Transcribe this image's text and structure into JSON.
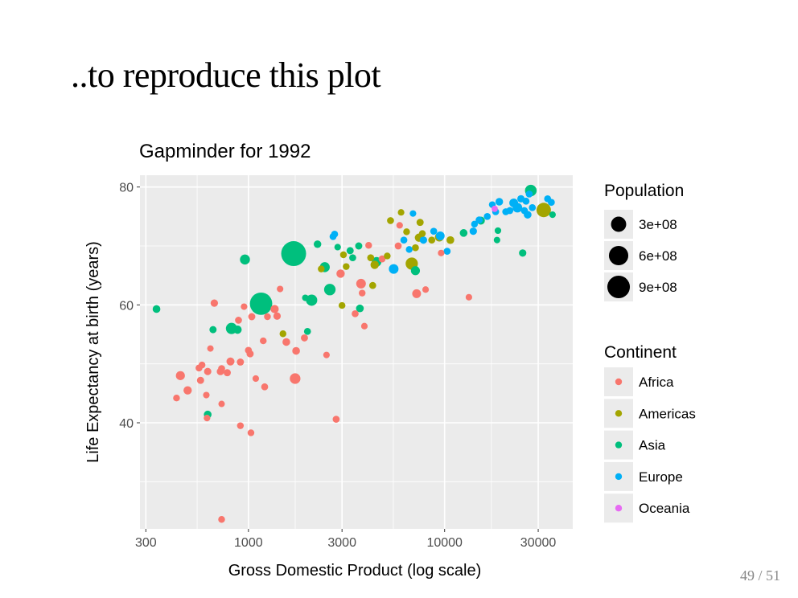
{
  "slide": {
    "title": "..to reproduce this plot",
    "page_number": "49 / 51"
  },
  "colors": {
    "Africa": "#F8766D",
    "Americas": "#A3A500",
    "Asia": "#00BF7D",
    "Europe": "#00B0F6",
    "Oceania": "#E76BF3",
    "panel": "#EBEBEB",
    "grid": "#FFFFFF"
  },
  "chart_data": {
    "type": "scatter",
    "title": "Gapminder for 1992",
    "xlabel": "Gross Domestic Product (log scale)",
    "ylabel": "Life Expectancy at birth (years)",
    "x_scale": "log",
    "xlim": [
      280,
      45000
    ],
    "ylim": [
      22,
      82
    ],
    "x_ticks": [
      300,
      1000,
      3000,
      10000,
      30000
    ],
    "x_tick_labels": [
      "300",
      "1000",
      "3000",
      "10000",
      "30000"
    ],
    "y_ticks": [
      40,
      60,
      80
    ],
    "y_tick_labels": [
      "40",
      "60",
      "80"
    ],
    "grid": true,
    "legend_position": "right",
    "size_legend": {
      "title": "Population",
      "entries": [
        {
          "label": "3e+08",
          "value": 300000000
        },
        {
          "label": "6e+08",
          "value": 600000000
        },
        {
          "label": "9e+08",
          "value": 900000000
        }
      ]
    },
    "color_legend": {
      "title": "Continent",
      "entries": [
        "Africa",
        "Americas",
        "Asia",
        "Europe",
        "Oceania"
      ]
    },
    "points": [
      {
        "gdp": 340,
        "life": 59.3,
        "pop": 20000000,
        "continent": "Asia"
      },
      {
        "gdp": 430,
        "life": 44.2,
        "pop": 8000000,
        "continent": "Africa"
      },
      {
        "gdp": 450,
        "life": 48.0,
        "pop": 45000000,
        "continent": "Africa"
      },
      {
        "gdp": 490,
        "life": 45.5,
        "pop": 30000000,
        "continent": "Africa"
      },
      {
        "gdp": 560,
        "life": 49.3,
        "pop": 10000000,
        "continent": "Africa"
      },
      {
        "gdp": 570,
        "life": 47.2,
        "pop": 12000000,
        "continent": "Africa"
      },
      {
        "gdp": 580,
        "life": 49.8,
        "pop": 8000000,
        "continent": "Africa"
      },
      {
        "gdp": 610,
        "life": 44.7,
        "pop": 6000000,
        "continent": "Africa"
      },
      {
        "gdp": 620,
        "life": 48.7,
        "pop": 14000000,
        "continent": "Africa"
      },
      {
        "gdp": 640,
        "life": 52.6,
        "pop": 5000000,
        "continent": "Africa"
      },
      {
        "gdp": 620,
        "life": 41.4,
        "pop": 20000000,
        "continent": "Asia"
      },
      {
        "gdp": 615,
        "life": 40.8,
        "pop": 6000000,
        "continent": "Africa"
      },
      {
        "gdp": 660,
        "life": 55.8,
        "pop": 12000000,
        "continent": "Asia"
      },
      {
        "gdp": 670,
        "life": 60.3,
        "pop": 15000000,
        "continent": "Africa"
      },
      {
        "gdp": 720,
        "life": 48.7,
        "pop": 15000000,
        "continent": "Africa"
      },
      {
        "gdp": 730,
        "life": 49.2,
        "pop": 10000000,
        "continent": "Africa"
      },
      {
        "gdp": 730,
        "life": 43.2,
        "pop": 5000000,
        "continent": "Africa"
      },
      {
        "gdp": 730,
        "life": 23.6,
        "pop": 8000000,
        "continent": "Africa"
      },
      {
        "gdp": 780,
        "life": 48.5,
        "pop": 12000000,
        "continent": "Africa"
      },
      {
        "gdp": 810,
        "life": 50.4,
        "pop": 25000000,
        "continent": "Africa"
      },
      {
        "gdp": 820,
        "life": 56.0,
        "pop": 110000000,
        "continent": "Asia"
      },
      {
        "gdp": 880,
        "life": 55.8,
        "pop": 30000000,
        "continent": "Asia"
      },
      {
        "gdp": 890,
        "life": 57.4,
        "pop": 10000000,
        "continent": "Africa"
      },
      {
        "gdp": 910,
        "life": 50.3,
        "pop": 12000000,
        "continent": "Africa"
      },
      {
        "gdp": 910,
        "life": 39.5,
        "pop": 8000000,
        "continent": "Africa"
      },
      {
        "gdp": 950,
        "life": 59.7,
        "pop": 6000000,
        "continent": "Africa"
      },
      {
        "gdp": 960,
        "life": 67.7,
        "pop": 70000000,
        "continent": "Asia"
      },
      {
        "gdp": 1000,
        "life": 52.3,
        "pop": 10000000,
        "continent": "Africa"
      },
      {
        "gdp": 1020,
        "life": 51.7,
        "pop": 12000000,
        "continent": "Africa"
      },
      {
        "gdp": 1030,
        "life": 38.3,
        "pop": 8000000,
        "continent": "Africa"
      },
      {
        "gdp": 1040,
        "life": 58.0,
        "pop": 12000000,
        "continent": "Africa"
      },
      {
        "gdp": 1090,
        "life": 47.5,
        "pop": 6000000,
        "continent": "Africa"
      },
      {
        "gdp": 1160,
        "life": 60.2,
        "pop": 880000000,
        "continent": "Asia"
      },
      {
        "gdp": 1190,
        "life": 53.9,
        "pop": 8000000,
        "continent": "Africa"
      },
      {
        "gdp": 1210,
        "life": 46.1,
        "pop": 10000000,
        "continent": "Africa"
      },
      {
        "gdp": 1250,
        "life": 58.0,
        "pop": 8000000,
        "continent": "Africa"
      },
      {
        "gdp": 1360,
        "life": 59.3,
        "pop": 28000000,
        "continent": "Africa"
      },
      {
        "gdp": 1400,
        "life": 58.1,
        "pop": 15000000,
        "continent": "Africa"
      },
      {
        "gdp": 1450,
        "life": 62.7,
        "pop": 6000000,
        "continent": "Africa"
      },
      {
        "gdp": 1500,
        "life": 55.1,
        "pop": 8000000,
        "continent": "Americas"
      },
      {
        "gdp": 1560,
        "life": 53.7,
        "pop": 20000000,
        "continent": "Africa"
      },
      {
        "gdp": 1700,
        "life": 68.7,
        "pop": 1160000000,
        "continent": "Asia"
      },
      {
        "gdp": 1730,
        "life": 47.5,
        "pop": 90000000,
        "continent": "Africa"
      },
      {
        "gdp": 1750,
        "life": 52.2,
        "pop": 20000000,
        "continent": "Africa"
      },
      {
        "gdp": 1930,
        "life": 54.4,
        "pop": 12000000,
        "continent": "Africa"
      },
      {
        "gdp": 1950,
        "life": 61.2,
        "pop": 6000000,
        "continent": "Asia"
      },
      {
        "gdp": 2000,
        "life": 55.5,
        "pop": 10000000,
        "continent": "Asia"
      },
      {
        "gdp": 2100,
        "life": 60.8,
        "pop": 110000000,
        "continent": "Asia"
      },
      {
        "gdp": 2250,
        "life": 70.3,
        "pop": 18000000,
        "continent": "Asia"
      },
      {
        "gdp": 2350,
        "life": 66.1,
        "pop": 8000000,
        "continent": "Americas"
      },
      {
        "gdp": 2450,
        "life": 66.4,
        "pop": 70000000,
        "continent": "Asia"
      },
      {
        "gdp": 2500,
        "life": 51.5,
        "pop": 6000000,
        "continent": "Africa"
      },
      {
        "gdp": 2600,
        "life": 62.6,
        "pop": 120000000,
        "continent": "Asia"
      },
      {
        "gdp": 2700,
        "life": 71.6,
        "pop": 10000000,
        "continent": "Europe"
      },
      {
        "gdp": 2750,
        "life": 72.0,
        "pop": 10000000,
        "continent": "Europe"
      },
      {
        "gdp": 2800,
        "life": 40.6,
        "pop": 10000000,
        "continent": "Africa"
      },
      {
        "gdp": 2850,
        "life": 69.8,
        "pop": 6000000,
        "continent": "Asia"
      },
      {
        "gdp": 2950,
        "life": 65.3,
        "pop": 30000000,
        "continent": "Africa"
      },
      {
        "gdp": 3000,
        "life": 59.9,
        "pop": 8000000,
        "continent": "Americas"
      },
      {
        "gdp": 3050,
        "life": 68.5,
        "pop": 8000000,
        "continent": "Americas"
      },
      {
        "gdp": 3150,
        "life": 66.5,
        "pop": 8000000,
        "continent": "Americas"
      },
      {
        "gdp": 3300,
        "life": 69.2,
        "pop": 12000000,
        "continent": "Asia"
      },
      {
        "gdp": 3400,
        "life": 68.0,
        "pop": 10000000,
        "continent": "Asia"
      },
      {
        "gdp": 3500,
        "life": 58.5,
        "pop": 10000000,
        "continent": "Africa"
      },
      {
        "gdp": 3650,
        "life": 70.0,
        "pop": 12000000,
        "continent": "Asia"
      },
      {
        "gdp": 3700,
        "life": 59.4,
        "pop": 20000000,
        "continent": "Asia"
      },
      {
        "gdp": 3750,
        "life": 63.6,
        "pop": 60000000,
        "continent": "Africa"
      },
      {
        "gdp": 3800,
        "life": 62.0,
        "pop": 8000000,
        "continent": "Africa"
      },
      {
        "gdp": 3900,
        "life": 56.4,
        "pop": 6000000,
        "continent": "Africa"
      },
      {
        "gdp": 4100,
        "life": 70.1,
        "pop": 8000000,
        "continent": "Africa"
      },
      {
        "gdp": 4200,
        "life": 68.0,
        "pop": 10000000,
        "continent": "Americas"
      },
      {
        "gdp": 4300,
        "life": 63.3,
        "pop": 10000000,
        "continent": "Americas"
      },
      {
        "gdp": 4400,
        "life": 66.8,
        "pop": 30000000,
        "continent": "Americas"
      },
      {
        "gdp": 4500,
        "life": 67.3,
        "pop": 60000000,
        "continent": "Asia"
      },
      {
        "gdp": 4800,
        "life": 67.8,
        "pop": 10000000,
        "continent": "Africa"
      },
      {
        "gdp": 5100,
        "life": 68.3,
        "pop": 8000000,
        "continent": "Americas"
      },
      {
        "gdp": 5300,
        "life": 74.3,
        "pop": 10000000,
        "continent": "Americas"
      },
      {
        "gdp": 5500,
        "life": 66.1,
        "pop": 60000000,
        "continent": "Europe"
      },
      {
        "gdp": 5800,
        "life": 70.0,
        "pop": 10000000,
        "continent": "Africa"
      },
      {
        "gdp": 5900,
        "life": 73.5,
        "pop": 6000000,
        "continent": "Africa"
      },
      {
        "gdp": 6000,
        "life": 75.7,
        "pop": 6000000,
        "continent": "Americas"
      },
      {
        "gdp": 6200,
        "life": 71.0,
        "pop": 10000000,
        "continent": "Europe"
      },
      {
        "gdp": 6400,
        "life": 72.4,
        "pop": 8000000,
        "continent": "Americas"
      },
      {
        "gdp": 6600,
        "life": 69.4,
        "pop": 8000000,
        "continent": "Europe"
      },
      {
        "gdp": 6800,
        "life": 67.0,
        "pop": 150000000,
        "continent": "Americas"
      },
      {
        "gdp": 6900,
        "life": 75.5,
        "pop": 6000000,
        "continent": "Europe"
      },
      {
        "gdp": 7100,
        "life": 69.7,
        "pop": 10000000,
        "continent": "Americas"
      },
      {
        "gdp": 7100,
        "life": 65.8,
        "pop": 45000000,
        "continent": "Asia"
      },
      {
        "gdp": 7200,
        "life": 61.9,
        "pop": 40000000,
        "continent": "Africa"
      },
      {
        "gdp": 7400,
        "life": 71.4,
        "pop": 30000000,
        "continent": "Americas"
      },
      {
        "gdp": 7500,
        "life": 74.0,
        "pop": 12000000,
        "continent": "Americas"
      },
      {
        "gdp": 7700,
        "life": 72.1,
        "pop": 8000000,
        "continent": "Americas"
      },
      {
        "gdp": 7800,
        "life": 71.0,
        "pop": 15000000,
        "continent": "Europe"
      },
      {
        "gdp": 8000,
        "life": 62.6,
        "pop": 6000000,
        "continent": "Africa"
      },
      {
        "gdp": 8600,
        "life": 71.0,
        "pop": 10000000,
        "continent": "Americas"
      },
      {
        "gdp": 8800,
        "life": 72.5,
        "pop": 10000000,
        "continent": "Europe"
      },
      {
        "gdp": 9400,
        "life": 71.5,
        "pop": 40000000,
        "continent": "Americas"
      },
      {
        "gdp": 9500,
        "life": 71.7,
        "pop": 40000000,
        "continent": "Europe"
      },
      {
        "gdp": 9600,
        "life": 68.8,
        "pop": 6000000,
        "continent": "Africa"
      },
      {
        "gdp": 10300,
        "life": 69.1,
        "pop": 10000000,
        "continent": "Europe"
      },
      {
        "gdp": 10700,
        "life": 71.0,
        "pop": 20000000,
        "continent": "Americas"
      },
      {
        "gdp": 12500,
        "life": 72.2,
        "pop": 20000000,
        "continent": "Asia"
      },
      {
        "gdp": 13300,
        "life": 61.3,
        "pop": 6000000,
        "continent": "Africa"
      },
      {
        "gdp": 14000,
        "life": 72.5,
        "pop": 15000000,
        "continent": "Europe"
      },
      {
        "gdp": 14200,
        "life": 73.7,
        "pop": 8000000,
        "continent": "Europe"
      },
      {
        "gdp": 15000,
        "life": 74.4,
        "pop": 12000000,
        "continent": "Europe"
      },
      {
        "gdp": 15300,
        "life": 74.3,
        "pop": 25000000,
        "continent": "Asia"
      },
      {
        "gdp": 16500,
        "life": 75.0,
        "pop": 10000000,
        "continent": "Europe"
      },
      {
        "gdp": 17500,
        "life": 77.0,
        "pop": 8000000,
        "continent": "Europe"
      },
      {
        "gdp": 18200,
        "life": 75.8,
        "pop": 10000000,
        "continent": "Europe"
      },
      {
        "gdp": 18500,
        "life": 71.0,
        "pop": 6000000,
        "continent": "Asia"
      },
      {
        "gdp": 18700,
        "life": 72.6,
        "pop": 6000000,
        "continent": "Asia"
      },
      {
        "gdp": 18000,
        "life": 76.3,
        "pop": 4000000,
        "continent": "Oceania"
      },
      {
        "gdp": 19000,
        "life": 77.5,
        "pop": 18000000,
        "continent": "Europe"
      },
      {
        "gdp": 20500,
        "life": 75.8,
        "pop": 10000000,
        "continent": "Europe"
      },
      {
        "gdp": 21500,
        "life": 76.0,
        "pop": 10000000,
        "continent": "Europe"
      },
      {
        "gdp": 22500,
        "life": 77.3,
        "pop": 40000000,
        "continent": "Europe"
      },
      {
        "gdp": 23500,
        "life": 76.5,
        "pop": 60000000,
        "continent": "Europe"
      },
      {
        "gdp": 24500,
        "life": 78.0,
        "pop": 15000000,
        "continent": "Europe"
      },
      {
        "gdp": 25000,
        "life": 68.8,
        "pop": 15000000,
        "continent": "Asia"
      },
      {
        "gdp": 25500,
        "life": 76.0,
        "pop": 10000000,
        "continent": "Europe"
      },
      {
        "gdp": 26000,
        "life": 77.6,
        "pop": 10000000,
        "continent": "Europe"
      },
      {
        "gdp": 26500,
        "life": 75.3,
        "pop": 20000000,
        "continent": "Europe"
      },
      {
        "gdp": 27000,
        "life": 78.8,
        "pop": 10000000,
        "continent": "Europe"
      },
      {
        "gdp": 27500,
        "life": 79.4,
        "pop": 125000000,
        "continent": "Asia"
      },
      {
        "gdp": 28000,
        "life": 76.5,
        "pop": 10000000,
        "continent": "Europe"
      },
      {
        "gdp": 32000,
        "life": 76.1,
        "pop": 256000000,
        "continent": "Americas"
      },
      {
        "gdp": 33500,
        "life": 78.0,
        "pop": 10000000,
        "continent": "Europe"
      },
      {
        "gdp": 35000,
        "life": 77.4,
        "pop": 10000000,
        "continent": "Europe"
      },
      {
        "gdp": 35500,
        "life": 75.3,
        "pop": 6000000,
        "continent": "Asia"
      }
    ]
  }
}
